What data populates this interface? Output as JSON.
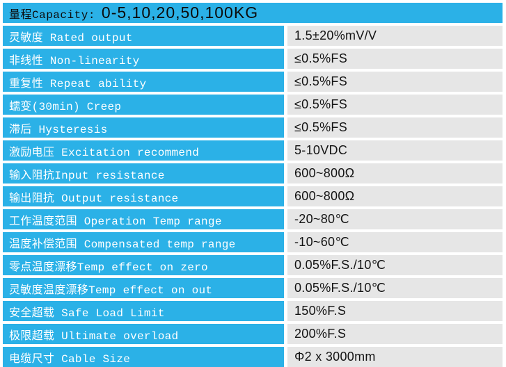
{
  "colors": {
    "accent_blue": "#2BB1E7",
    "cell_gray": "#E6E6E6",
    "label_text": "#FFFFFF",
    "value_text": "#141414",
    "header_text": "#0B0B0B"
  },
  "table": {
    "header": {
      "label": "量程Capacity:",
      "value": "0-5,10,20,50,100KG"
    },
    "columns": [
      "parameter",
      "value"
    ],
    "rows": [
      {
        "label": "灵敏度 Rated output",
        "value": "1.5±20%mV/V"
      },
      {
        "label": "非线性 Non-linearity",
        "value": "≤0.5%FS"
      },
      {
        "label": "重复性 Repeat ability",
        "value": "≤0.5%FS"
      },
      {
        "label": "蠕变(30min) Creep",
        "value": "≤0.5%FS"
      },
      {
        "label": "滞后 Hysteresis",
        "value": "≤0.5%FS"
      },
      {
        "label": "激励电压 Excitation recommend",
        "value": "5-10VDC"
      },
      {
        "label": "输入阻抗Input resistance",
        "value": "600~800Ω"
      },
      {
        "label": "输出阻抗 Output resistance",
        "value": "600~800Ω"
      },
      {
        "label": "工作温度范围 Operation Temp range",
        "value": "-20~80℃"
      },
      {
        "label": "温度补偿范围 Compensated temp range",
        "value": "-10~60℃"
      },
      {
        "label": "零点温度漂移Temp effect on zero",
        "value": "0.05%F.S./10℃"
      },
      {
        "label": "灵敏度温度漂移Temp effect on out",
        "value": "0.05%F.S./10℃"
      },
      {
        "label": "安全超载 Safe Load Limit",
        "value": "150%F.S"
      },
      {
        "label": "极限超载 Ultimate overload",
        "value": "200%F.S"
      },
      {
        "label": "电缆尺寸 Cable Size",
        "value": "Φ2 x 3000mm"
      }
    ]
  }
}
